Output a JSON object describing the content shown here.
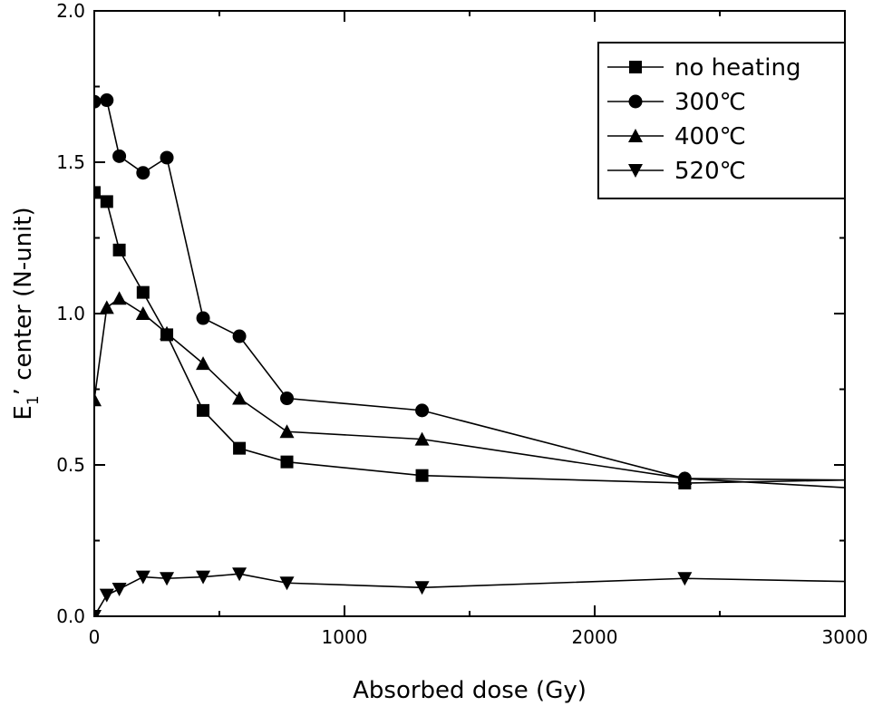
{
  "chart_data": {
    "type": "line",
    "title": "",
    "xlabel": "Absorbed dose (Gy)",
    "ylabel": "E1’ center (N-unit)",
    "ylabel_main": "E",
    "ylabel_sub": "1",
    "ylabel_rest": "’ center (N-unit)",
    "xlim": [
      0,
      3000
    ],
    "ylim": [
      0,
      2.0
    ],
    "xticks": [
      0,
      1000,
      2000,
      3000
    ],
    "xtick_labels": [
      "0",
      "1000",
      "2000",
      "3000"
    ],
    "yticks": [
      0,
      0.5,
      1.0,
      1.5,
      2.0
    ],
    "ytick_labels": [
      "0.0",
      "0.5",
      "1.0",
      "1.5",
      "2.0"
    ],
    "grid": false,
    "legend_position": "top-right",
    "series": [
      {
        "name": "no heating",
        "marker": "square",
        "x": [
          0,
          50,
          100,
          195,
          290,
          435,
          580,
          770,
          1310,
          2360,
          3000
        ],
        "y": [
          1.4,
          1.37,
          1.21,
          1.07,
          0.93,
          0.68,
          0.555,
          0.51,
          0.465,
          0.44,
          0.45
        ]
      },
      {
        "name": "300℃",
        "marker": "circle",
        "x": [
          0,
          50,
          100,
          195,
          290,
          435,
          580,
          770,
          1310,
          2360,
          3000
        ],
        "y": [
          1.7,
          1.705,
          1.52,
          1.465,
          1.515,
          0.985,
          0.925,
          0.72,
          0.68,
          0.455,
          0.425
        ]
      },
      {
        "name": "400℃",
        "marker": "triangle-up",
        "x": [
          0,
          50,
          100,
          195,
          290,
          435,
          580,
          770,
          1310,
          2360,
          3000
        ],
        "y": [
          0.715,
          1.02,
          1.05,
          1.0,
          0.935,
          0.835,
          0.72,
          0.61,
          0.585,
          0.455,
          0.45
        ]
      },
      {
        "name": "520℃",
        "marker": "triangle-down",
        "x": [
          0,
          50,
          100,
          195,
          290,
          435,
          580,
          770,
          1310,
          2360,
          3000
        ],
        "y": [
          0.0,
          0.07,
          0.09,
          0.13,
          0.125,
          0.13,
          0.14,
          0.11,
          0.095,
          0.125,
          0.115
        ]
      }
    ]
  }
}
